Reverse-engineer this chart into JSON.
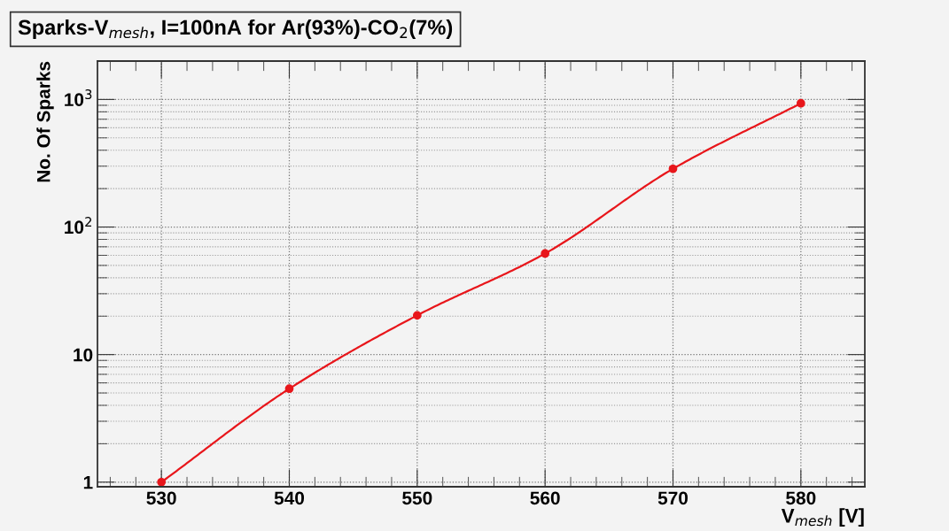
{
  "chart_data": {
    "type": "line",
    "title": "Sparks-V$_{mesh}$, I=100nA for Ar(93%)-CO$_{2}$(7%)",
    "xlabel": "V$_{mesh}$ [V]",
    "ylabel": "No. Of Sparks",
    "x": [
      530,
      540,
      550,
      560,
      570,
      580
    ],
    "series": [
      {
        "color": "#e8161b",
        "values": [
          1,
          5.4,
          20.3,
          62,
          286,
          933
        ]
      }
    ],
    "xlim": [
      525,
      585
    ],
    "xticks": [
      530,
      540,
      550,
      560,
      570,
      580
    ],
    "ylim": [
      0.92,
      2000
    ],
    "yticks": [
      1,
      10,
      {
        "value": 100,
        "label": "10$^{2}$"
      },
      {
        "value": 1000,
        "label": "10$^{3}$"
      }
    ],
    "log": "y",
    "grid": true,
    "marker": "circle",
    "line_style": "solid"
  }
}
